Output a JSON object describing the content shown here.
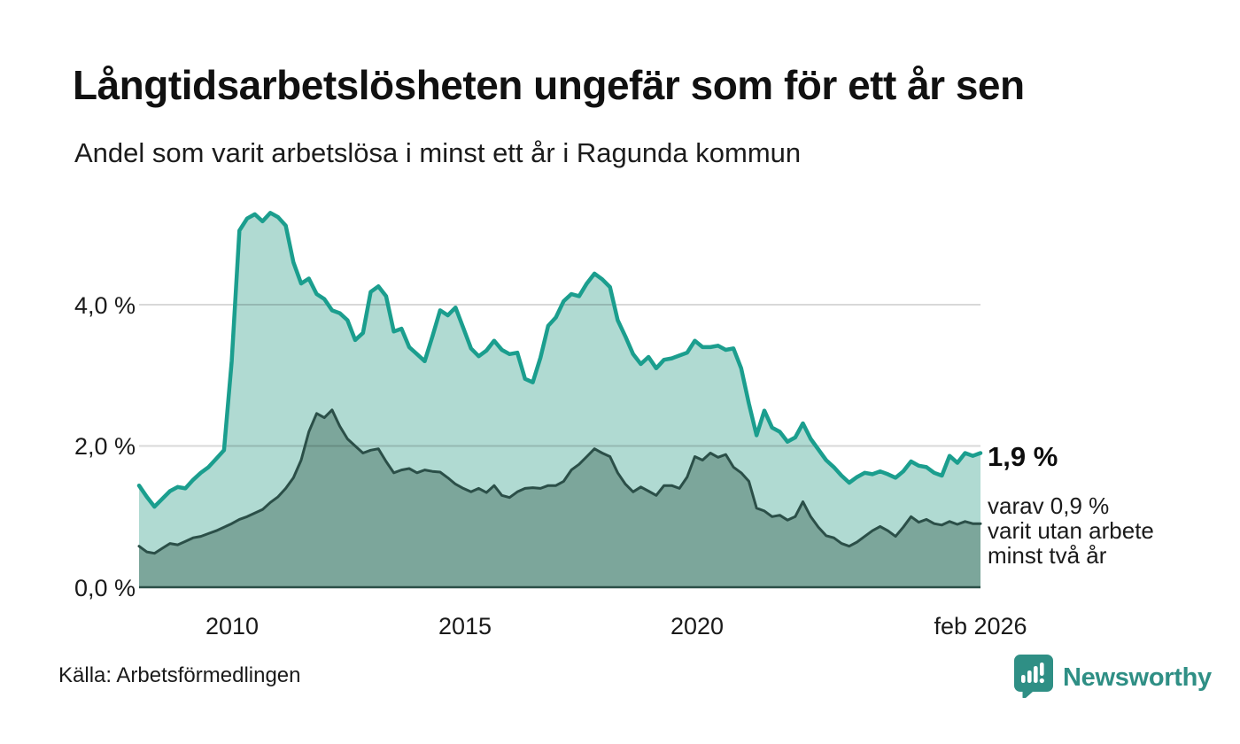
{
  "header": {
    "title": "Långtidsarbetslösheten ungefär som för ett år sen",
    "subtitle": "Andel som varit arbetslösa i minst ett år i Ragunda kommun"
  },
  "chart_data": {
    "type": "area",
    "title": "Långtidsarbetslösheten ungefär som för ett år sen",
    "subtitle": "Andel som varit arbetslösa i minst ett år i Ragunda kommun",
    "x_axis": {
      "range": [
        2008.0,
        2026.083
      ],
      "ticks": [
        "2010",
        "2015",
        "2020",
        "feb 2026"
      ],
      "tick_years": [
        2010,
        2015,
        2020,
        2026.083
      ]
    },
    "y_axis": {
      "unit": "%",
      "range": [
        0,
        5.6
      ],
      "ticks": [
        "0,0 %",
        "2,0 %",
        "4,0 %"
      ],
      "tick_values": [
        0,
        2,
        4
      ],
      "gridline_values": [
        2,
        4
      ]
    },
    "grid_color": "#d8d8d8",
    "series": [
      {
        "name": "minst ett år",
        "color": "#1b9e8e",
        "fill": "#b0dad2",
        "end_value_label": "1,9 %",
        "values": [
          1.44,
          1.28,
          1.14,
          1.25,
          1.36,
          1.42,
          1.4,
          1.52,
          1.62,
          1.7,
          1.82,
          1.94,
          3.2,
          5.05,
          5.22,
          5.28,
          5.18,
          5.3,
          5.24,
          5.12,
          4.6,
          4.3,
          4.37,
          4.15,
          4.08,
          3.92,
          3.88,
          3.78,
          3.5,
          3.6,
          4.18,
          4.26,
          4.12,
          3.62,
          3.66,
          3.4,
          3.3,
          3.2,
          3.55,
          3.92,
          3.85,
          3.96,
          3.67,
          3.38,
          3.27,
          3.35,
          3.49,
          3.36,
          3.3,
          3.32,
          2.95,
          2.9,
          3.25,
          3.7,
          3.82,
          4.05,
          4.15,
          4.12,
          4.3,
          4.44,
          4.36,
          4.25,
          3.78,
          3.55,
          3.3,
          3.16,
          3.26,
          3.1,
          3.22,
          3.24,
          3.28,
          3.32,
          3.49,
          3.4,
          3.4,
          3.42,
          3.36,
          3.38,
          3.1,
          2.6,
          2.15,
          2.5,
          2.26,
          2.2,
          2.06,
          2.12,
          2.32,
          2.1,
          1.95,
          1.8,
          1.7,
          1.58,
          1.48,
          1.56,
          1.62,
          1.6,
          1.64,
          1.6,
          1.55,
          1.64,
          1.78,
          1.72,
          1.7,
          1.62,
          1.58,
          1.86,
          1.76,
          1.9,
          1.86,
          1.9
        ]
      },
      {
        "name": "minst två år",
        "color": "#2b4f48",
        "fill": "#7ca69b",
        "end_value_label": "0,9 %",
        "values": [
          0.58,
          0.5,
          0.48,
          0.55,
          0.62,
          0.6,
          0.65,
          0.7,
          0.72,
          0.76,
          0.8,
          0.85,
          0.9,
          0.96,
          1.0,
          1.05,
          1.1,
          1.2,
          1.28,
          1.4,
          1.55,
          1.8,
          2.2,
          2.46,
          2.4,
          2.51,
          2.28,
          2.1,
          2.0,
          1.9,
          1.94,
          1.96,
          1.78,
          1.62,
          1.66,
          1.68,
          1.62,
          1.66,
          1.64,
          1.63,
          1.55,
          1.46,
          1.4,
          1.35,
          1.4,
          1.34,
          1.44,
          1.3,
          1.27,
          1.35,
          1.4,
          1.41,
          1.4,
          1.44,
          1.44,
          1.5,
          1.66,
          1.74,
          1.85,
          1.96,
          1.9,
          1.85,
          1.62,
          1.46,
          1.35,
          1.42,
          1.36,
          1.3,
          1.44,
          1.44,
          1.4,
          1.56,
          1.85,
          1.8,
          1.9,
          1.84,
          1.88,
          1.7,
          1.62,
          1.5,
          1.12,
          1.08,
          1.0,
          1.02,
          0.95,
          1.0,
          1.21,
          1.0,
          0.85,
          0.73,
          0.7,
          0.62,
          0.58,
          0.64,
          0.72,
          0.8,
          0.86,
          0.8,
          0.72,
          0.85,
          1.0,
          0.92,
          0.96,
          0.9,
          0.88,
          0.93,
          0.89,
          0.93,
          0.9,
          0.9
        ]
      }
    ],
    "annotations": {
      "primary": "1,9 %",
      "secondary": [
        "varav 0,9 %",
        "varit utan arbete",
        "minst två år"
      ]
    },
    "legend_position": "none",
    "grid": "horizontal-only"
  },
  "footer": {
    "source": "Källa: Arbetsförmedlingen",
    "brand": "Newsworthy",
    "brand_color": "#2f8f85"
  }
}
